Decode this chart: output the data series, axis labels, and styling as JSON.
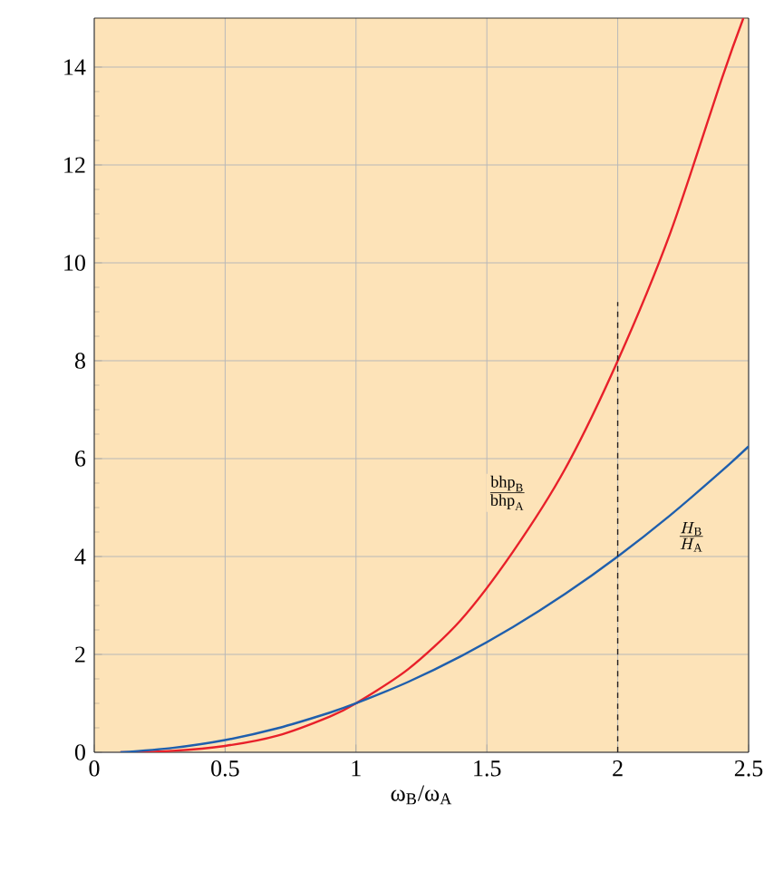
{
  "chart_data": {
    "type": "line",
    "xlabel": "ω$_{B}$/ω$_{A}$",
    "xlim": [
      0,
      2.5
    ],
    "ylim": [
      0,
      15
    ],
    "xticks": [
      0,
      0.5,
      1,
      1.5,
      2,
      2.5
    ],
    "yticks": [
      0,
      2,
      4,
      6,
      8,
      10,
      12,
      14
    ],
    "grid": true,
    "legend": false,
    "marker": "none",
    "series": [
      {
        "name": "\\frac{\\mathrm{bhp}_{\\mathrm{B}}}{\\mathrm{bhp}_{\\mathrm{A}}}",
        "color": "#e8202a",
        "x": [
          0.1,
          0.3,
          0.5,
          0.7,
          0.9,
          1.0,
          1.2,
          1.4,
          1.6,
          1.8,
          2.0,
          2.2,
          2.4,
          2.48
        ],
        "values": [
          0.0,
          0.03,
          0.13,
          0.34,
          0.73,
          1.0,
          1.7,
          2.7,
          4.1,
          5.8,
          8.0,
          10.6,
          13.8,
          15.0
        ]
      },
      {
        "name": "\\frac{H_{\\mathrm{B}}}{H_{\\mathrm{A}}}",
        "color": "#1f5fad",
        "x": [
          0.1,
          0.3,
          0.5,
          0.7,
          0.9,
          1.0,
          1.2,
          1.4,
          1.6,
          1.8,
          2.0,
          2.2,
          2.4,
          2.5
        ],
        "values": [
          0.0,
          0.09,
          0.25,
          0.49,
          0.81,
          1.0,
          1.44,
          1.96,
          2.56,
          3.24,
          4.0,
          4.84,
          5.76,
          6.25
        ]
      },
      {
        "color": "#231f20",
        "line_style": "dashed",
        "x": [
          2,
          2
        ],
        "values": [
          0,
          9.2
        ]
      }
    ]
  }
}
